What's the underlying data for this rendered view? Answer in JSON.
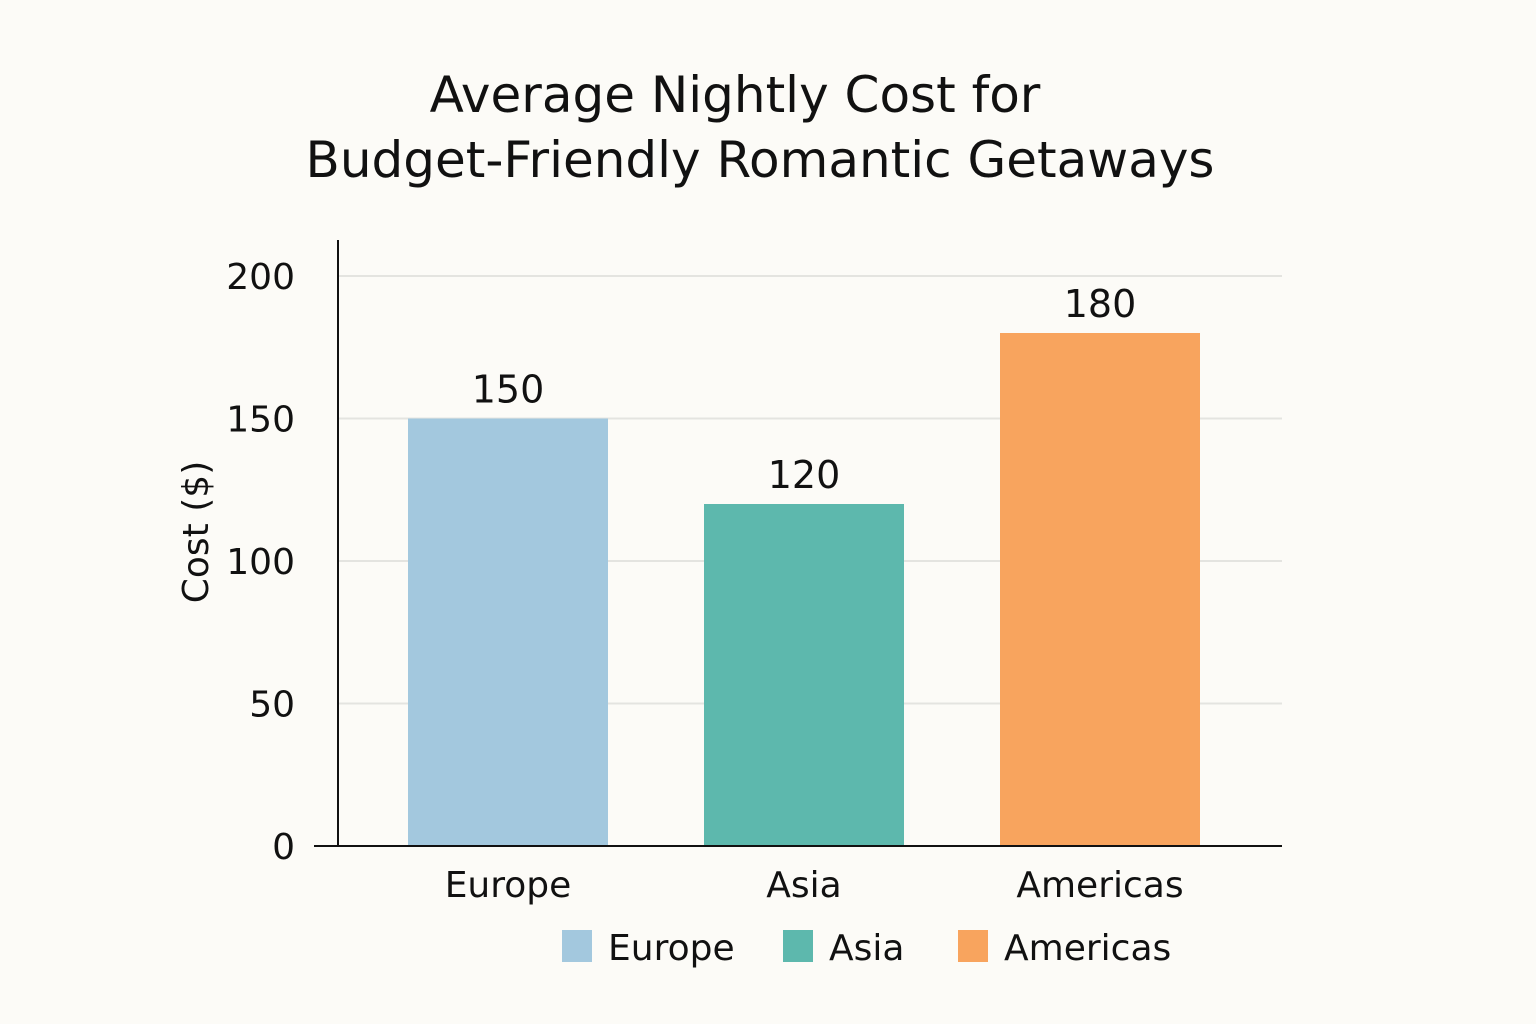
{
  "chart_data": {
    "type": "bar",
    "title_lines": [
      "Average Nightly Cost for",
      "Budget-Friendly Romantic Getaways"
    ],
    "xlabel": "",
    "ylabel": "Cost ($)",
    "ylim": [
      0,
      200
    ],
    "yticks": [
      0,
      50,
      100,
      150,
      200
    ],
    "categories": [
      "Europe",
      "Asia",
      "Americas"
    ],
    "values": [
      150,
      120,
      180
    ],
    "data_labels": [
      "150",
      "120",
      "180"
    ],
    "colors": [
      "#a3c8de",
      "#5db8ad",
      "#f8a45e"
    ],
    "grid": true,
    "legend": {
      "position": "bottom",
      "entries": [
        "Europe",
        "Asia",
        "Americas"
      ]
    }
  }
}
